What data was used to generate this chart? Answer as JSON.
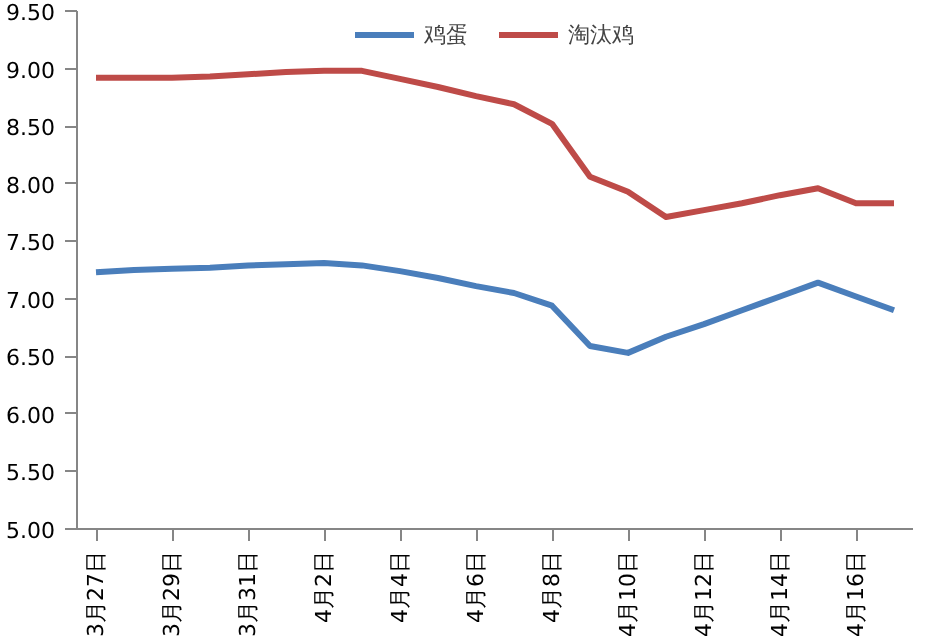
{
  "chart_data": {
    "type": "line",
    "categories": [
      "3月27日",
      null,
      "3月29日",
      null,
      "3月31日",
      null,
      "4月2日",
      null,
      "4月4日",
      null,
      "4月6日",
      null,
      "4月8日",
      null,
      "4月10日",
      null,
      "4月12日",
      null,
      "4月14日",
      null,
      "4月16日",
      null
    ],
    "series": [
      {
        "name": "鸡蛋",
        "color": "#4a7ebb",
        "values": [
          7.23,
          7.25,
          7.26,
          7.27,
          7.29,
          7.3,
          7.31,
          7.29,
          7.24,
          7.18,
          7.11,
          7.05,
          6.94,
          6.59,
          6.53,
          6.67,
          6.78,
          6.9,
          7.02,
          7.14,
          7.02,
          6.9
        ]
      },
      {
        "name": "淘汰鸡",
        "color": "#be4b48",
        "values": [
          8.92,
          8.92,
          8.92,
          8.93,
          8.95,
          8.97,
          8.98,
          8.98,
          8.91,
          8.84,
          8.76,
          8.69,
          8.52,
          8.06,
          7.93,
          7.71,
          7.77,
          7.83,
          7.9,
          7.96,
          7.83,
          7.83
        ]
      }
    ],
    "ylim": [
      5,
      9.5
    ],
    "yticks": [
      {
        "value": 5,
        "label": "5.00"
      },
      {
        "value": 5.5,
        "label": "5.50"
      },
      {
        "value": 6,
        "label": "6.00"
      },
      {
        "value": 6.5,
        "label": "6.50"
      },
      {
        "value": 7,
        "label": "7.00"
      },
      {
        "value": 7.5,
        "label": "7.50"
      },
      {
        "value": 8,
        "label": "8.00"
      },
      {
        "value": 8.5,
        "label": "8.50"
      },
      {
        "value": 9,
        "label": "9.00"
      },
      {
        "value": 9.5,
        "label": "9.50"
      }
    ],
    "grid": false,
    "legend": "top",
    "marker": "none",
    "line_style": "solid"
  }
}
